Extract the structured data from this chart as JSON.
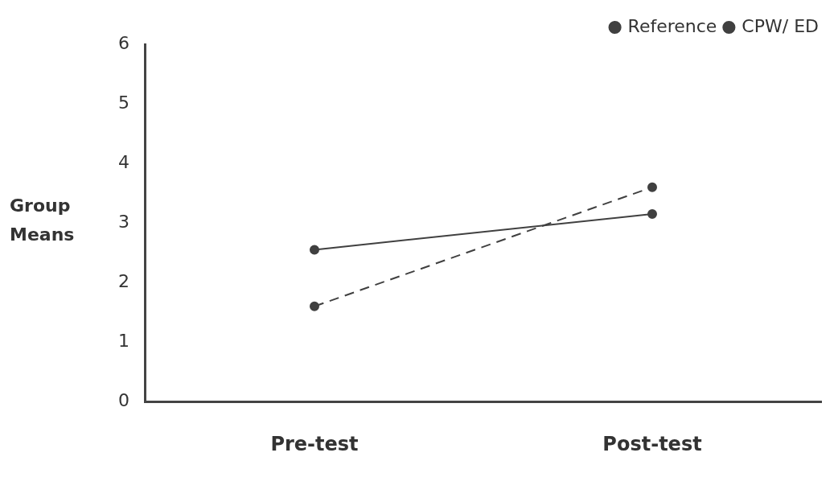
{
  "chart_data": {
    "type": "line",
    "ylabel": "Group\nMeans",
    "categories": [
      "Pre-test",
      "Post-test"
    ],
    "series": [
      {
        "name": "Reference",
        "color": "#404040",
        "values": [
          2.55,
          3.15
        ],
        "line_style": "solid"
      },
      {
        "name": "CPW/ ED",
        "color": "#404040",
        "values": [
          1.6,
          3.6
        ],
        "line_style": "dashed"
      }
    ],
    "ylim": [
      0,
      6
    ],
    "yticks": [
      0,
      1,
      2,
      3,
      4,
      5,
      6
    ],
    "grid": false,
    "legend": "top right",
    "marker": "circle"
  }
}
